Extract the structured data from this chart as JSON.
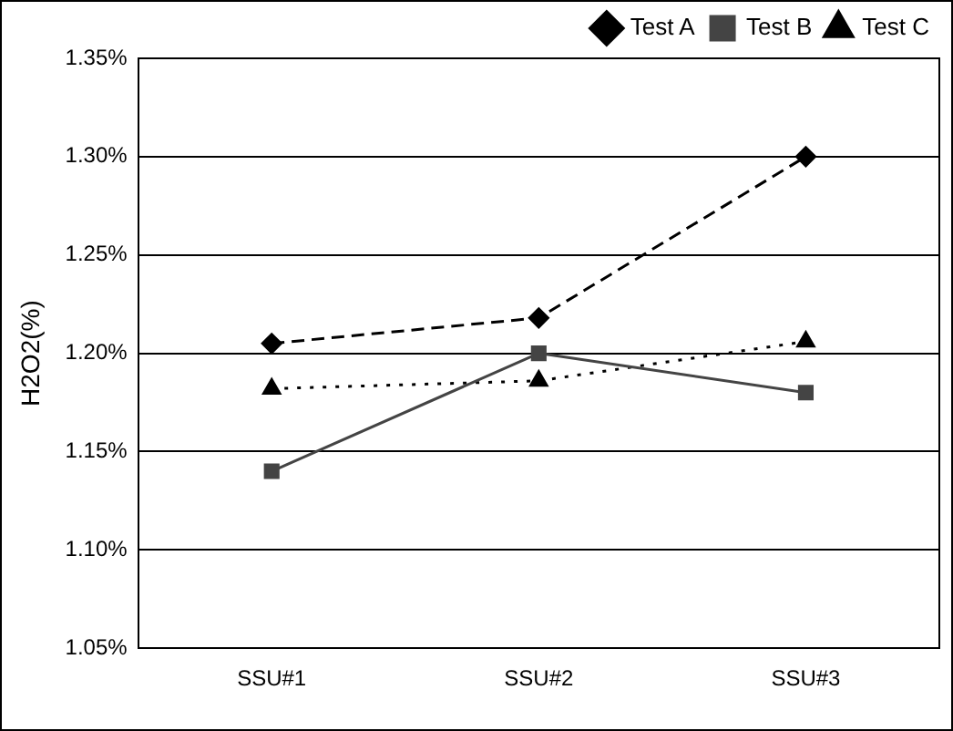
{
  "chart_data": {
    "type": "line",
    "ylabel": "H2O2(%)",
    "categories": [
      "SSU#1",
      "SSU#2",
      "SSU#3"
    ],
    "series": [
      {
        "name": "Test A",
        "color": "#000000",
        "marker": "diamond",
        "line_style": "dashed",
        "values": [
          1.205,
          1.218,
          1.3
        ]
      },
      {
        "name": "Test B",
        "color": "#444444",
        "marker": "square",
        "line_style": "solid",
        "values": [
          1.14,
          1.2,
          1.18
        ]
      },
      {
        "name": "Test C",
        "color": "#000000",
        "marker": "triangle",
        "line_style": "dotted",
        "values": [
          1.182,
          1.186,
          1.206
        ]
      }
    ],
    "ylim": [
      1.05,
      1.35
    ],
    "yticks": [
      {
        "value": 1.05,
        "label": "1.05%"
      },
      {
        "value": 1.1,
        "label": "1.10%"
      },
      {
        "value": 1.15,
        "label": "1.15%"
      },
      {
        "value": 1.2,
        "label": "1.20%"
      },
      {
        "value": 1.25,
        "label": "1.25%"
      },
      {
        "value": 1.3,
        "label": "1.30%"
      },
      {
        "value": 1.35,
        "label": "1.35%"
      }
    ],
    "grid": "y",
    "legend": "top right"
  }
}
